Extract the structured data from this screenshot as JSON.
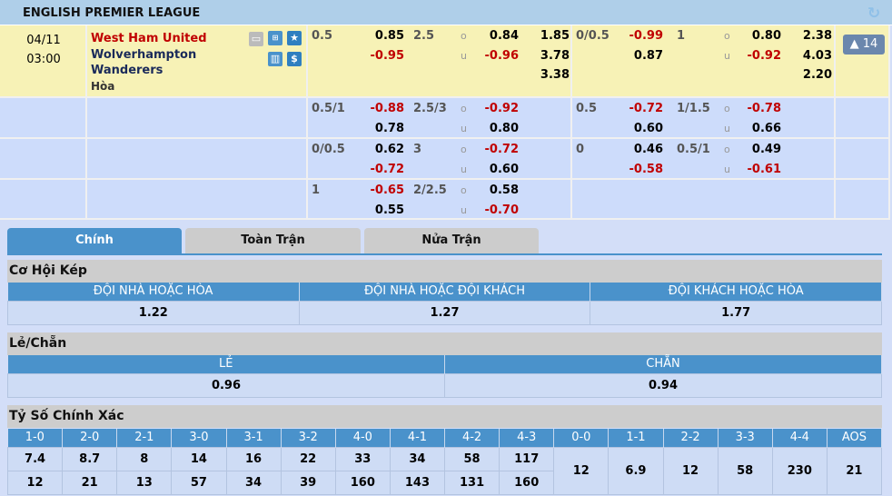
{
  "league": {
    "title": "ENGLISH PREMIER LEAGUE",
    "refresh_icon": "refresh-icon"
  },
  "match": {
    "date": "04/11",
    "time": "03:00",
    "home": "West Ham United",
    "away": "Wolverhampton Wanderers",
    "draw": "Hòa",
    "more_label": "▲ 14"
  },
  "odds_rows": [
    {
      "ft": {
        "hdp": "0.5",
        "h": "0.85",
        "a": "-0.95",
        "ou": "2.5",
        "o": "0.84",
        "u": "-0.96",
        "x1": "1.85",
        "x2": "3.78",
        "x3": "3.38"
      },
      "ht": {
        "hdp": "0/0.5",
        "h": "-0.99",
        "a": "0.87",
        "ou": "1",
        "o": "0.80",
        "u": "-0.92",
        "x1": "2.38",
        "x2": "4.03",
        "x3": "2.20"
      }
    },
    {
      "ft": {
        "hdp": "0.5/1",
        "h": "-0.88",
        "a": "0.78",
        "ou": "2.5/3",
        "o": "-0.92",
        "u": "0.80"
      },
      "ht": {
        "hdp": "0.5",
        "h": "-0.72",
        "a": "0.60",
        "ou": "1/1.5",
        "o": "-0.78",
        "u": "0.66"
      }
    },
    {
      "ft": {
        "hdp": "0/0.5",
        "h": "0.62",
        "a": "-0.72",
        "ou": "3",
        "o": "-0.72",
        "u": "0.60"
      },
      "ht": {
        "hdp": "0",
        "h": "0.46",
        "a": "-0.58",
        "ou": "0.5/1",
        "o": "0.49",
        "u": "-0.61"
      }
    },
    {
      "ft": {
        "hdp": "1",
        "h": "-0.65",
        "a": "0.55",
        "ou": "2/2.5",
        "o": "0.58",
        "u": "-0.70"
      },
      "ht": {}
    }
  ],
  "ou_labels": {
    "o": "o",
    "u": "u"
  },
  "tabs": [
    {
      "label": "Chính",
      "active": true
    },
    {
      "label": "Toàn Trận"
    },
    {
      "label": "Nửa Trận"
    }
  ],
  "double_chance": {
    "title": "Cơ Hội Kép",
    "headers": [
      "ĐỘI NHÀ HOẶC HÒA",
      "ĐỘI NHÀ HOẶC ĐỘI KHÁCH",
      "ĐỘI KHÁCH HOẶC HÒA"
    ],
    "values": [
      "1.22",
      "1.27",
      "1.77"
    ]
  },
  "odd_even": {
    "title": "Lẻ/Chẵn",
    "headers": [
      "LẺ",
      "CHẴN"
    ],
    "values": [
      "0.96",
      "0.94"
    ]
  },
  "correct_score": {
    "title": "Tỷ Số Chính Xác",
    "headers": [
      "1-0",
      "2-0",
      "2-1",
      "3-0",
      "3-1",
      "3-2",
      "4-0",
      "4-1",
      "4-2",
      "4-3",
      "0-0",
      "1-1",
      "2-2",
      "3-3",
      "4-4",
      "AOS"
    ],
    "home_row": [
      "7.4",
      "8.7",
      "8",
      "14",
      "16",
      "22",
      "33",
      "34",
      "58",
      "117"
    ],
    "away_row": [
      "12",
      "21",
      "13",
      "57",
      "34",
      "39",
      "160",
      "143",
      "131",
      "160"
    ],
    "draw_row": [
      "12",
      "6.9",
      "12",
      "58",
      "230",
      "21"
    ]
  },
  "colors": {
    "header": "#afcfe9",
    "main_row": "#f7f2b6",
    "sub_row": "#cddcfb",
    "accent": "#4a92cb",
    "negative": "#c00000",
    "home_team": "#c00000",
    "away_team": "#1a2a5a"
  }
}
